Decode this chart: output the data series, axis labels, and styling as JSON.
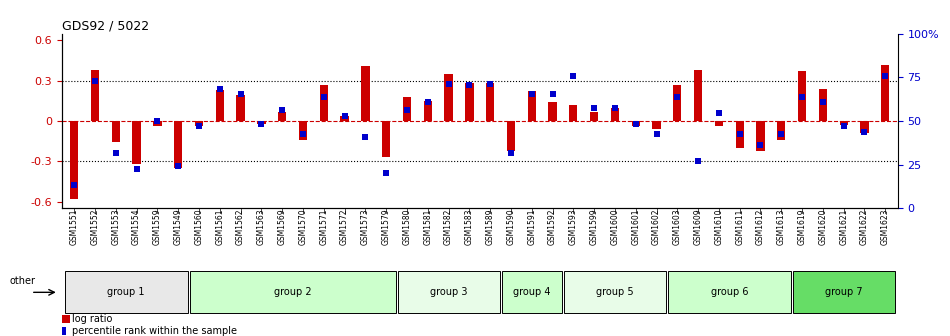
{
  "title": "GDS92 / 5022",
  "samples": [
    "GSM1551",
    "GSM1552",
    "GSM1553",
    "GSM1554",
    "GSM1559",
    "GSM1549",
    "GSM1560",
    "GSM1561",
    "GSM1562",
    "GSM1563",
    "GSM1569",
    "GSM1570",
    "GSM1571",
    "GSM1572",
    "GSM1573",
    "GSM1579",
    "GSM1580",
    "GSM1581",
    "GSM1582",
    "GSM1583",
    "GSM1589",
    "GSM1590",
    "GSM1591",
    "GSM1592",
    "GSM1593",
    "GSM1599",
    "GSM1600",
    "GSM1601",
    "GSM1602",
    "GSM1603",
    "GSM1609",
    "GSM1610",
    "GSM1611",
    "GSM1612",
    "GSM1613",
    "GSM1619",
    "GSM1620",
    "GSM1621",
    "GSM1622",
    "GSM1623"
  ],
  "log_ratio": [
    -0.58,
    0.38,
    -0.16,
    -0.32,
    -0.04,
    -0.35,
    -0.04,
    0.23,
    0.19,
    -0.02,
    0.07,
    -0.14,
    0.27,
    0.04,
    0.41,
    -0.27,
    0.18,
    0.15,
    0.35,
    0.28,
    0.28,
    -0.22,
    0.22,
    0.14,
    0.12,
    0.07,
    0.1,
    -0.04,
    -0.06,
    0.27,
    0.38,
    -0.04,
    -0.2,
    -0.22,
    -0.14,
    0.37,
    0.24,
    -0.03,
    -0.09,
    0.42
  ],
  "percentile": [
    10,
    75,
    30,
    20,
    50,
    22,
    47,
    70,
    67,
    48,
    57,
    42,
    65,
    53,
    40,
    18,
    57,
    62,
    73,
    72,
    73,
    30,
    67,
    67,
    78,
    58,
    58,
    48,
    42,
    65,
    25,
    55,
    42,
    35,
    42,
    65,
    62,
    47,
    43,
    78
  ],
  "groups": [
    {
      "label": "group 1",
      "start": 0,
      "end": 5,
      "color": "#e8e8e8"
    },
    {
      "label": "group 2",
      "start": 6,
      "end": 15,
      "color": "#ccffcc"
    },
    {
      "label": "group 3",
      "start": 16,
      "end": 20,
      "color": "#e8fce8"
    },
    {
      "label": "group 4",
      "start": 21,
      "end": 23,
      "color": "#ccffcc"
    },
    {
      "label": "group 5",
      "start": 24,
      "end": 28,
      "color": "#e8fce8"
    },
    {
      "label": "group 6",
      "start": 29,
      "end": 34,
      "color": "#ccffcc"
    },
    {
      "label": "group 7",
      "start": 35,
      "end": 39,
      "color": "#66dd66"
    }
  ],
  "bar_color": "#cc0000",
  "point_color": "#0000cc",
  "ylim_left": [
    -0.65,
    0.65
  ],
  "ylim_right": [
    0,
    100
  ],
  "yticks_left": [
    -0.6,
    -0.3,
    0.0,
    0.3,
    0.6
  ],
  "ytick_labels_left": [
    "-0.6",
    "-0.3",
    "0",
    "0.3",
    "0.6"
  ],
  "yticks_right": [
    0,
    25,
    50,
    75,
    100
  ],
  "ytick_labels_right": [
    "0",
    "25",
    "50",
    "75",
    "100%"
  ],
  "hlines_dotted": [
    0.3,
    0.0,
    -0.3
  ],
  "background_color": "#ffffff",
  "legend_log_ratio": "log ratio",
  "legend_percentile": "percentile rank within the sample",
  "bar_width": 0.4,
  "point_size": 4
}
